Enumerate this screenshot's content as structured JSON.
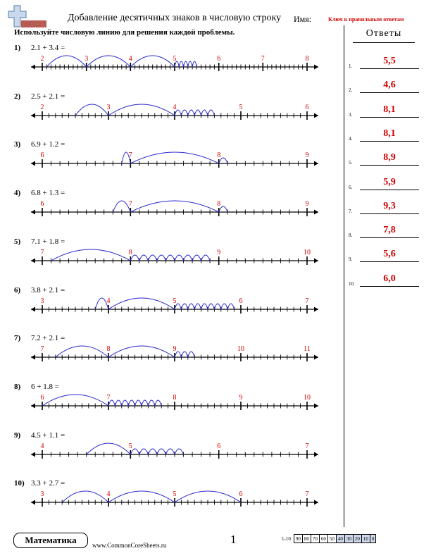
{
  "header": {
    "title": "Добавление десятичных знаков в числовую строку",
    "name_label": "Имя:",
    "key_label": "Ключ к правильным ответам"
  },
  "instructions": "Используйте числовую линию для решения каждой проблемы.",
  "answers": {
    "title": "Ответы",
    "items": [
      {
        "num": "1.",
        "value": "5,5"
      },
      {
        "num": "2.",
        "value": "4,6"
      },
      {
        "num": "3.",
        "value": "8,1"
      },
      {
        "num": "4.",
        "value": "8,1"
      },
      {
        "num": "5.",
        "value": "8,9"
      },
      {
        "num": "6.",
        "value": "5,9"
      },
      {
        "num": "7.",
        "value": "9,3"
      },
      {
        "num": "8.",
        "value": "7,8"
      },
      {
        "num": "9.",
        "value": "5,6"
      },
      {
        "num": "10.",
        "value": "6,0"
      }
    ]
  },
  "problems": [
    {
      "num": "1)",
      "expr": "2.1 + 3.4 =",
      "start": 2,
      "end": 8,
      "a": 2.1,
      "b": 3.4
    },
    {
      "num": "2)",
      "expr": "2.5 + 2.1 =",
      "start": 2,
      "end": 6,
      "a": 2.5,
      "b": 2.1
    },
    {
      "num": "3)",
      "expr": "6.9 + 1.2 =",
      "start": 6,
      "end": 9,
      "a": 6.9,
      "b": 1.2
    },
    {
      "num": "4)",
      "expr": "6.8 + 1.3 =",
      "start": 6,
      "end": 9,
      "a": 6.8,
      "b": 1.3
    },
    {
      "num": "5)",
      "expr": "7.1 + 1.8 =",
      "start": 7,
      "end": 10,
      "a": 7.1,
      "b": 1.8
    },
    {
      "num": "6)",
      "expr": "3.8 + 2.1 =",
      "start": 3,
      "end": 7,
      "a": 3.8,
      "b": 2.1
    },
    {
      "num": "7)",
      "expr": "7.2 + 2.1 =",
      "start": 7,
      "end": 11,
      "a": 7.2,
      "b": 2.1
    },
    {
      "num": "8)",
      "expr": "6 + 1.8 =",
      "start": 6,
      "end": 10,
      "a": 6,
      "b": 1.8
    },
    {
      "num": "9)",
      "expr": "4.5 + 1.1 =",
      "start": 4,
      "end": 7,
      "a": 4.5,
      "b": 1.1
    },
    {
      "num": "10)",
      "expr": "3.3 + 2.7 =",
      "start": 3,
      "end": 7,
      "a": 3.3,
      "b": 2.7
    }
  ],
  "footer": {
    "subject": "Математика",
    "site": "www.CommonCoreSheets.ru",
    "page": "1",
    "score_range_label": "1-10",
    "scores": [
      "90",
      "80",
      "70",
      "60",
      "50",
      "40",
      "30",
      "20",
      "10",
      "0"
    ]
  },
  "colors": {
    "arc": "#2a2ad0",
    "label": "#d00000",
    "answer": "#d00000",
    "score_shade": "#cfd9ea"
  }
}
